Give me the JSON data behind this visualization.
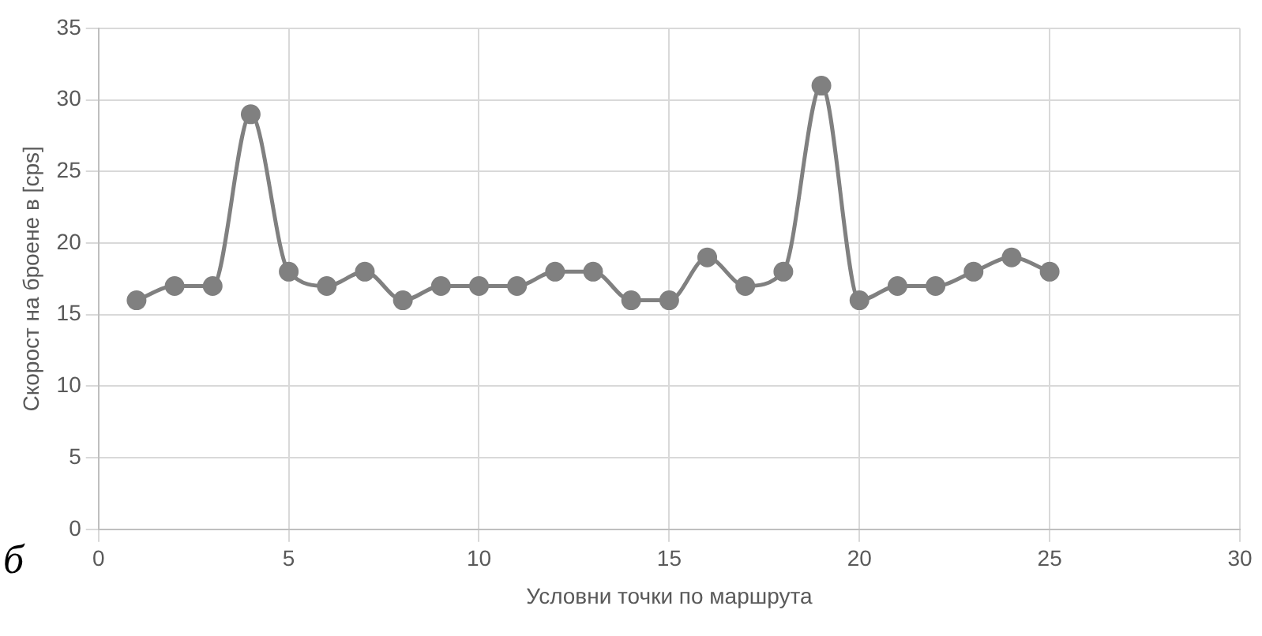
{
  "chart_data": {
    "type": "line",
    "xlabel": "Условни точки по маршрута",
    "ylabel": "Скорост на броене в [cps]",
    "x": [
      1,
      2,
      3,
      4,
      5,
      6,
      7,
      8,
      9,
      10,
      11,
      12,
      13,
      14,
      15,
      16,
      17,
      18,
      19,
      20,
      21,
      22,
      23,
      24,
      25
    ],
    "series": [
      {
        "color": "#808080",
        "values": [
          16,
          17,
          17,
          29,
          18,
          17,
          18,
          16,
          17,
          17,
          17,
          18,
          18,
          16,
          16,
          19,
          17,
          18,
          31,
          16,
          17,
          17,
          18,
          19,
          18
        ]
      }
    ],
    "xlim": [
      0,
      30
    ],
    "xticks": [
      0,
      5,
      10,
      15,
      20,
      25,
      30
    ],
    "ylim": [
      0,
      35
    ],
    "yticks": [
      0,
      5,
      10,
      15,
      20,
      25,
      30,
      35
    ],
    "grid": true,
    "legend": false,
    "marker": "circle",
    "line_style": "solid",
    "annotations": [
      "б"
    ]
  }
}
